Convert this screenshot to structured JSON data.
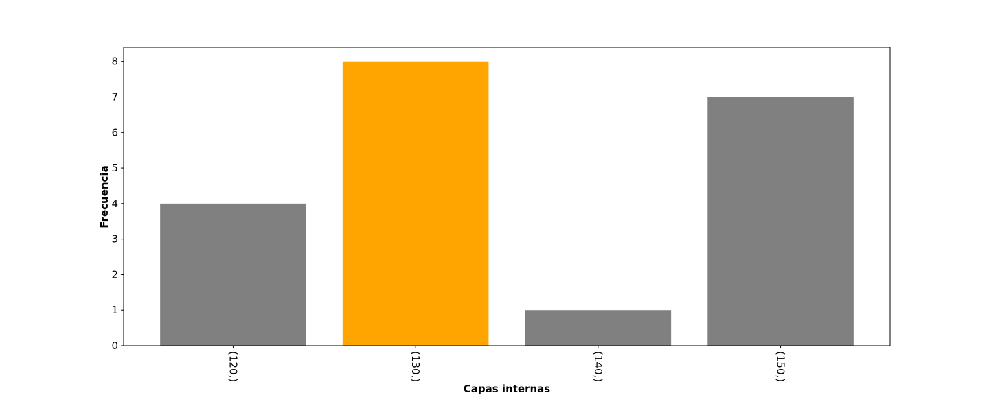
{
  "chart_data": {
    "type": "bar",
    "categories": [
      "(120,)",
      "(130,)",
      "(140,)",
      "(150,)"
    ],
    "values": [
      4,
      8,
      1,
      7
    ],
    "colors": [
      "#808080",
      "#ffa500",
      "#808080",
      "#808080"
    ],
    "xlabel": "Capas internas",
    "ylabel": "Frecuencia",
    "ylim": [
      0,
      8.4
    ],
    "yticks": [
      0,
      1,
      2,
      3,
      4,
      5,
      6,
      7,
      8
    ],
    "grid": false,
    "xtick_rotation": 90
  }
}
